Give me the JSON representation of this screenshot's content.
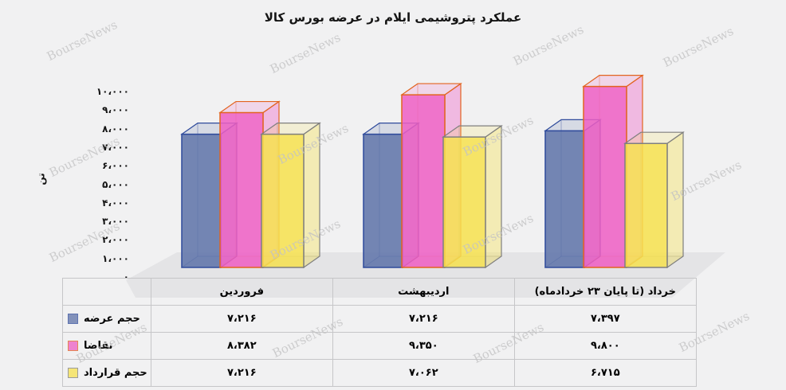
{
  "title": "عملکرد پتروشیمی ایلام در عرضه بورس کالا",
  "watermark_text": "BourseNews",
  "y_axis": {
    "unit_label": "تن",
    "tick_values": [
      0,
      1000,
      2000,
      3000,
      4000,
      5000,
      6000,
      7000,
      8000,
      9000,
      10000
    ],
    "tick_labels": [
      "۰",
      "۱،۰۰۰",
      "۲،۰۰۰",
      "۳،۰۰۰",
      "۴،۰۰۰",
      "۵،۰۰۰",
      "۶،۰۰۰",
      "۷،۰۰۰",
      "۸،۰۰۰",
      "۹،۰۰۰",
      "۱۰،۰۰۰"
    ]
  },
  "chart_data": {
    "type": "bar",
    "style": "3d-column",
    "title": "عملکرد پتروشیمی ایلام در عرضه بورس کالا",
    "xlabel": "",
    "ylabel": "تن",
    "ylim": [
      0,
      10000
    ],
    "grid": false,
    "legend_position": "table-row-headers",
    "categories": [
      "فروردین",
      "اردیبهشت",
      "خرداد (تا پایان ۲۳ خردادماه)"
    ],
    "series": [
      {
        "name": "حجم عرضه",
        "values": [
          7216,
          7216,
          7397
        ],
        "display_values": [
          "۷،۲۱۶",
          "۷،۲۱۶",
          "۷،۳۹۷"
        ],
        "fill": "#5d72a8",
        "edge": "#2e4a9b"
      },
      {
        "name": "تقاضا",
        "values": [
          8382,
          9350,
          9800
        ],
        "display_values": [
          "۸،۳۸۲",
          "۹،۳۵۰",
          "۹،۸۰۰"
        ],
        "fill": "#ee5ec4",
        "edge": "#e2641f"
      },
      {
        "name": "حجم قرارداد",
        "values": [
          7216,
          7062,
          6715
        ],
        "display_values": [
          "۷،۲۱۶",
          "۷،۰۶۲",
          "۶،۷۱۵"
        ],
        "fill": "#f7e24e",
        "edge": "#7f7f7f"
      }
    ]
  }
}
